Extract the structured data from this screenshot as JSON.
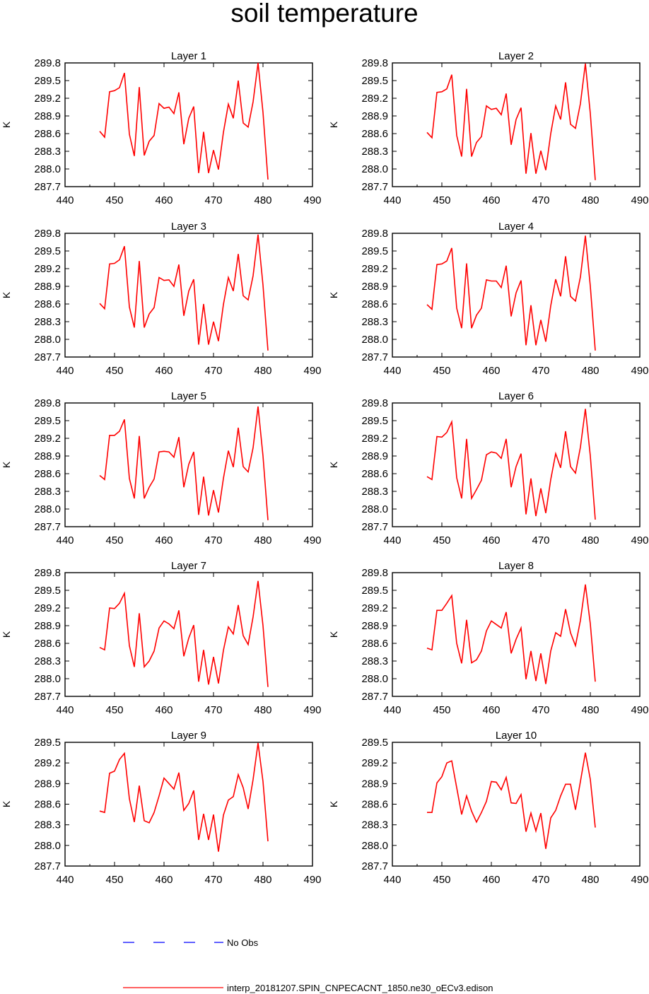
{
  "title": "soil temperature",
  "chart_data": {
    "type": "line",
    "ylabel": "K",
    "xlim": [
      440,
      490
    ],
    "xticks": [
      440,
      450,
      460,
      470,
      480,
      490
    ],
    "x": [
      447,
      448,
      449,
      450,
      451,
      452,
      453,
      454,
      455,
      456,
      457,
      458,
      459,
      460,
      461,
      462,
      463,
      464,
      465,
      466,
      467,
      468,
      469,
      470,
      471,
      472,
      473,
      474,
      475,
      476,
      477,
      478,
      479,
      480,
      481
    ],
    "series_names": [
      "No Obs",
      "interp_20181207.SPIN_CNPECACNT_1850.ne30_oECv3.edison"
    ],
    "series_colors": {
      "obs": "#0000ff",
      "model": "#ff0000"
    },
    "panels": [
      {
        "title": "Layer 1",
        "ylim": [
          287.7,
          289.8
        ],
        "yticks": [
          "287.7",
          "288.0",
          "288.3",
          "288.6",
          "288.9",
          "289.2",
          "289.5",
          "289.8"
        ],
        "values": [
          288.64,
          288.54,
          289.31,
          289.33,
          289.38,
          289.63,
          288.59,
          288.22,
          289.39,
          288.23,
          288.47,
          288.57,
          289.11,
          289.03,
          289.05,
          288.94,
          289.3,
          288.42,
          288.86,
          289.06,
          287.93,
          288.63,
          287.93,
          288.32,
          287.99,
          288.62,
          289.1,
          288.86,
          289.5,
          288.78,
          288.71,
          289.14,
          289.8,
          288.96,
          287.82
        ],
        "obs": [
          null
        ]
      },
      {
        "title": "Layer 2",
        "ylim": [
          287.7,
          289.8
        ],
        "yticks": [
          "287.7",
          "288.0",
          "288.3",
          "288.6",
          "288.9",
          "289.2",
          "289.5",
          "289.8"
        ],
        "values": [
          288.62,
          288.53,
          289.3,
          289.31,
          289.36,
          289.6,
          288.57,
          288.21,
          289.36,
          288.21,
          288.45,
          288.55,
          289.07,
          289.01,
          289.03,
          288.92,
          289.28,
          288.41,
          288.84,
          289.04,
          287.92,
          288.61,
          287.92,
          288.31,
          287.98,
          288.6,
          289.07,
          288.84,
          289.47,
          288.76,
          288.69,
          289.11,
          289.79,
          288.94,
          287.81
        ],
        "obs": [
          null
        ]
      },
      {
        "title": "Layer 3",
        "ylim": [
          287.7,
          289.8
        ],
        "yticks": [
          "287.7",
          "288.0",
          "288.3",
          "288.6",
          "288.9",
          "289.2",
          "289.5",
          "289.8"
        ],
        "values": [
          288.61,
          288.52,
          289.28,
          289.29,
          289.35,
          289.58,
          288.55,
          288.2,
          289.33,
          288.2,
          288.43,
          288.54,
          289.05,
          289.0,
          289.01,
          288.9,
          289.27,
          288.4,
          288.82,
          289.02,
          287.91,
          288.6,
          287.91,
          288.3,
          287.97,
          288.59,
          289.05,
          288.82,
          289.45,
          288.74,
          288.67,
          289.08,
          289.78,
          288.92,
          287.81
        ],
        "obs": [
          null
        ]
      },
      {
        "title": "Layer 4",
        "ylim": [
          287.7,
          289.8
        ],
        "yticks": [
          "287.7",
          "288.0",
          "288.3",
          "288.6",
          "288.9",
          "289.2",
          "289.5",
          "289.8"
        ],
        "values": [
          288.59,
          288.51,
          289.27,
          289.28,
          289.33,
          289.55,
          288.53,
          288.19,
          289.29,
          288.19,
          288.41,
          288.53,
          289.01,
          288.99,
          288.99,
          288.88,
          289.25,
          288.39,
          288.79,
          289.0,
          287.9,
          288.58,
          287.9,
          288.33,
          287.96,
          288.57,
          289.02,
          288.73,
          289.41,
          288.73,
          288.65,
          289.06,
          289.76,
          288.9,
          287.81
        ],
        "obs": [
          null
        ]
      },
      {
        "title": "Layer 5",
        "ylim": [
          287.7,
          289.8
        ],
        "yticks": [
          "287.7",
          "288.0",
          "288.3",
          "288.6",
          "288.9",
          "289.2",
          "289.5",
          "289.8"
        ],
        "values": [
          288.57,
          288.5,
          289.25,
          289.25,
          289.32,
          289.52,
          288.52,
          288.18,
          289.24,
          288.18,
          288.37,
          288.51,
          288.97,
          288.98,
          288.97,
          288.88,
          289.22,
          288.37,
          288.76,
          288.97,
          287.9,
          288.55,
          287.89,
          288.32,
          287.94,
          288.52,
          288.99,
          288.71,
          289.38,
          288.72,
          288.63,
          289.04,
          289.74,
          288.9,
          287.81
        ],
        "obs": [
          null
        ]
      },
      {
        "title": "Layer 6",
        "ylim": [
          287.7,
          289.8
        ],
        "yticks": [
          "287.7",
          "288.0",
          "288.3",
          "288.6",
          "288.9",
          "289.2",
          "289.5",
          "289.8"
        ],
        "values": [
          288.55,
          288.5,
          289.23,
          289.22,
          289.3,
          289.48,
          288.53,
          288.18,
          289.19,
          288.18,
          288.33,
          288.49,
          288.92,
          288.97,
          288.95,
          288.86,
          289.19,
          288.37,
          288.72,
          288.94,
          287.91,
          288.52,
          287.88,
          288.35,
          287.93,
          288.5,
          288.94,
          288.7,
          289.32,
          288.72,
          288.61,
          289.05,
          289.7,
          288.9,
          287.82
        ],
        "obs": [
          null
        ]
      },
      {
        "title": "Layer 7",
        "ylim": [
          287.7,
          289.8
        ],
        "yticks": [
          "287.7",
          "288.0",
          "288.3",
          "288.6",
          "288.9",
          "289.2",
          "289.5",
          "289.8"
        ],
        "values": [
          288.53,
          288.49,
          289.2,
          289.19,
          289.28,
          289.45,
          288.56,
          288.2,
          289.11,
          288.2,
          288.3,
          288.47,
          288.86,
          288.98,
          288.93,
          288.85,
          289.16,
          288.38,
          288.69,
          288.91,
          287.95,
          288.49,
          287.9,
          288.37,
          287.92,
          288.48,
          288.88,
          288.76,
          289.25,
          288.73,
          288.58,
          289.05,
          289.66,
          288.9,
          287.86
        ],
        "obs": [
          null
        ]
      },
      {
        "title": "Layer 8",
        "ylim": [
          287.7,
          289.8
        ],
        "yticks": [
          "287.7",
          "288.0",
          "288.3",
          "288.6",
          "288.9",
          "289.2",
          "289.5",
          "289.8"
        ],
        "values": [
          288.52,
          288.49,
          289.16,
          289.16,
          289.28,
          289.41,
          288.6,
          288.26,
          289.0,
          288.27,
          288.32,
          288.47,
          288.81,
          288.98,
          288.92,
          288.86,
          289.13,
          288.43,
          288.67,
          288.86,
          287.99,
          288.47,
          287.96,
          288.43,
          287.91,
          288.47,
          288.78,
          288.72,
          289.18,
          288.78,
          288.56,
          288.99,
          289.6,
          288.93,
          287.95
        ],
        "obs": [
          null
        ]
      },
      {
        "title": "Layer 9",
        "ylim": [
          287.7,
          289.5
        ],
        "yticks": [
          "287.7",
          "288.0",
          "288.3",
          "288.6",
          "288.9",
          "289.2",
          "289.5"
        ],
        "values": [
          288.5,
          288.48,
          289.05,
          289.08,
          289.25,
          289.34,
          288.68,
          288.34,
          288.87,
          288.36,
          288.33,
          288.48,
          288.72,
          288.98,
          288.9,
          288.82,
          289.06,
          288.51,
          288.61,
          288.8,
          288.08,
          288.46,
          288.08,
          288.45,
          287.91,
          288.44,
          288.66,
          288.71,
          289.03,
          288.84,
          288.53,
          288.96,
          289.49,
          288.93,
          288.06
        ],
        "obs": [
          null
        ]
      },
      {
        "title": "Layer 10",
        "ylim": [
          287.7,
          289.5
        ],
        "yticks": [
          "287.7",
          "288.0",
          "288.3",
          "288.6",
          "288.9",
          "289.2",
          "289.5"
        ],
        "values": [
          288.48,
          288.48,
          288.91,
          289.0,
          289.2,
          289.23,
          288.84,
          288.45,
          288.72,
          288.5,
          288.34,
          288.48,
          288.64,
          288.93,
          288.92,
          288.81,
          288.99,
          288.62,
          288.61,
          288.74,
          288.2,
          288.47,
          288.21,
          288.47,
          287.95,
          288.4,
          288.51,
          288.72,
          288.89,
          288.89,
          288.52,
          288.93,
          289.35,
          288.96,
          288.26
        ],
        "obs": [
          null
        ]
      }
    ]
  }
}
